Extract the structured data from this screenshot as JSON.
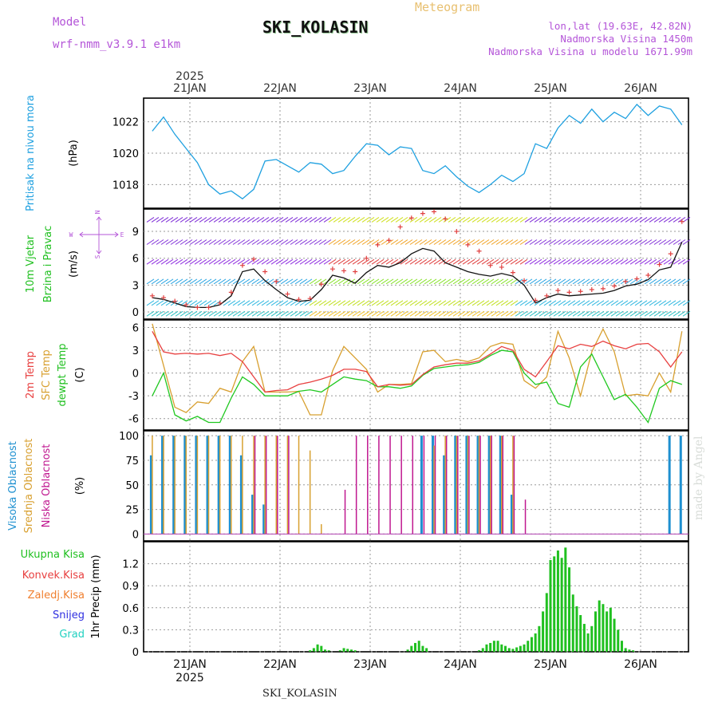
{
  "header": {
    "model_label": "Model",
    "model_name": "wrf-nmm_v3.9.1 e1km",
    "product": "Meteogram",
    "station": "SKI_KOLASIN",
    "lonlat": "lon,lat (19.63E, 42.82N)",
    "altitude": "Nadmorska Visina 1450m",
    "altitude_model": "Nadmorska Visina u modelu 1671.99m"
  },
  "footer": "SKI_KOLASIN",
  "credit": "made by Angel",
  "time_axis": {
    "year": "2025",
    "days": [
      "21JAN",
      "22JAN",
      "23JAN",
      "24JAN",
      "25JAN",
      "26JAN"
    ]
  },
  "colors": {
    "pressure": "#1ea0e0",
    "wind_speed": "#111111",
    "wind_gust": "#e04040",
    "t2m": "#e84040",
    "tsfc": "#d8a030",
    "dewpt": "#20c820",
    "cloud_high": "#1e90d0",
    "cloud_mid": "#d8a030",
    "cloud_low": "#c01890",
    "precip_total": "#20c020",
    "precip_conv": "#e84040",
    "precip_frz": "#f08030",
    "precip_snow": "#3030e0",
    "precip_grad": "#20d0c0"
  },
  "wind_compass": {
    "n": "N",
    "w": "W",
    "e": "E",
    "s": "S"
  },
  "panels": {
    "pressure": {
      "label": "Pritisak na nivou mora",
      "unit": "(hPa)",
      "ticks": [
        "1018",
        "1020",
        "1022"
      ]
    },
    "wind": {
      "label1": "10m Vjetar",
      "label2": "Brzina i Pravac",
      "unit": "(m/s)",
      "ticks": [
        "0",
        "3",
        "6",
        "9"
      ]
    },
    "temp": {
      "label1": "2m Temp",
      "label2": "SFC Temp",
      "label3": "dewpt Temp",
      "unit": "(C)",
      "ticks": [
        "-6",
        "-3",
        "0",
        "3",
        "6"
      ]
    },
    "cloud": {
      "label1": "Visoka Oblacnost",
      "label2": "Srednja Oblacnost",
      "label3": "Niska Oblacnost",
      "unit": "(%)",
      "ticks": [
        "0",
        "25",
        "50",
        "75",
        "100"
      ]
    },
    "precip": {
      "labels": [
        "Ukupna Kisa",
        "Konvek.Kisa",
        "Zaledj.Kisa",
        "Snijeg",
        "Grad"
      ],
      "axis": "1hr Precip (mm)",
      "ticks": [
        "0",
        "0.3",
        "0.6",
        "0.9",
        "1.2"
      ]
    }
  },
  "chart_data": [
    {
      "type": "line",
      "title": "Pritisak na nivou mora",
      "ylabel": "hPa",
      "x_start": "2025-01-20T14:00",
      "x_step_hours": 3,
      "ylim": [
        1016.5,
        1023.5
      ],
      "series": [
        {
          "name": "Pritisak na nivou mora",
          "values": [
            1021.4,
            1022.3,
            1021.2,
            1020.3,
            1019.4,
            1018.0,
            1017.4,
            1017.6,
            1017.1,
            1017.7,
            1019.5,
            1019.6,
            1019.2,
            1018.8,
            1019.4,
            1019.3,
            1018.7,
            1018.9,
            1019.8,
            1020.6,
            1020.5,
            1019.9,
            1020.4,
            1020.3,
            1018.9,
            1018.7,
            1019.2,
            1018.5,
            1017.9,
            1017.5,
            1018.0,
            1018.6,
            1018.2,
            1018.7,
            1020.6,
            1020.3,
            1021.6,
            1022.4,
            1021.9,
            1022.8,
            1022.0,
            1022.6,
            1022.2,
            1023.1,
            1022.4,
            1023.0,
            1022.8,
            1021.8
          ]
        }
      ]
    },
    {
      "type": "line",
      "title": "10m Vjetar Brzina i Pravac",
      "ylabel": "m/s",
      "x_start": "2025-01-20T14:00",
      "x_step_hours": 3,
      "ylim": [
        -0.8,
        11.5
      ],
      "series": [
        {
          "name": "Brzina",
          "values": [
            1.6,
            1.4,
            1.0,
            0.6,
            0.5,
            0.5,
            0.8,
            1.8,
            4.5,
            4.8,
            3.5,
            2.5,
            1.6,
            1.2,
            1.3,
            2.5,
            4.1,
            3.8,
            3.2,
            4.4,
            5.2,
            5.0,
            5.5,
            6.5,
            7.1,
            6.8,
            5.5,
            5.0,
            4.5,
            4.2,
            4.0,
            4.3,
            4.0,
            3.0,
            1.0,
            1.6,
            2.0,
            1.8,
            1.9,
            2.0,
            2.1,
            2.4,
            2.9,
            3.1,
            3.6,
            4.7,
            5.0,
            7.8
          ]
        },
        {
          "name": "Udari",
          "values": [
            1.8,
            1.6,
            1.2,
            0.8,
            0.5,
            0.5,
            1.0,
            2.2,
            5.2,
            5.9,
            4.5,
            3.4,
            2.0,
            1.4,
            1.5,
            3.1,
            4.8,
            4.6,
            4.5,
            6.0,
            7.5,
            8.0,
            9.5,
            10.5,
            11.0,
            11.2,
            10.4,
            9.0,
            7.5,
            6.8,
            5.2,
            5.0,
            4.4,
            3.5,
            1.3,
            1.8,
            2.4,
            2.2,
            2.3,
            2.5,
            2.6,
            2.9,
            3.4,
            3.7,
            4.1,
            5.3,
            6.5,
            10.1
          ]
        }
      ]
    },
    {
      "type": "line",
      "title": "2m Temp / SFC Temp / dewpt Temp",
      "ylabel": "C",
      "x_start": "2025-01-20T14:00",
      "x_step_hours": 3,
      "ylim": [
        -7.5,
        7.0
      ],
      "series": [
        {
          "name": "2m Temp",
          "values": [
            5.5,
            2.8,
            2.5,
            2.6,
            2.5,
            2.6,
            2.3,
            2.6,
            1.5,
            -0.5,
            -2.5,
            -2.3,
            -2.2,
            -1.5,
            -1.2,
            -0.8,
            -0.3,
            0.5,
            0.5,
            0.2,
            -1.8,
            -1.5,
            -1.6,
            -1.5,
            -0.2,
            0.8,
            1.1,
            1.3,
            1.3,
            1.6,
            2.5,
            3.5,
            3.0,
            0.5,
            -0.5,
            1.5,
            3.6,
            3.2,
            3.8,
            3.5,
            4.2,
            3.6,
            3.2,
            3.8,
            3.9,
            2.8,
            0.8,
            2.8
          ]
        },
        {
          "name": "SFC Temp",
          "values": [
            6.5,
            1.0,
            -4.5,
            -5.2,
            -3.8,
            -4.0,
            -2.0,
            -2.5,
            1.5,
            3.5,
            -2.5,
            -2.5,
            -2.5,
            -2.4,
            -5.5,
            -5.5,
            0.3,
            3.5,
            2.0,
            0.5,
            -2.5,
            -1.5,
            -1.5,
            -1.4,
            2.8,
            3.0,
            1.5,
            1.8,
            1.5,
            2.0,
            3.5,
            4.0,
            3.8,
            -1.0,
            -2.0,
            -0.5,
            5.5,
            2.0,
            -3.0,
            2.8,
            5.8,
            2.8,
            -3.0,
            -2.8,
            -3.0,
            0.0,
            -2.5,
            5.5
          ]
        },
        {
          "name": "dewpt Temp",
          "values": [
            -3.0,
            0.0,
            -5.5,
            -6.3,
            -5.7,
            -6.5,
            -6.5,
            -3.3,
            -0.5,
            -1.5,
            -3.0,
            -3.0,
            -3.0,
            -2.4,
            -2.2,
            -2.5,
            -1.5,
            -0.5,
            -0.8,
            -1.0,
            -1.8,
            -1.8,
            -2.0,
            -1.7,
            -0.3,
            0.6,
            0.8,
            1.0,
            1.1,
            1.4,
            2.3,
            3.0,
            2.8,
            0.0,
            -1.5,
            -1.2,
            -4.0,
            -4.5,
            0.8,
            2.5,
            -0.5,
            -3.5,
            -2.8,
            -4.5,
            -6.5,
            -2.0,
            -1.0,
            -1.5
          ]
        }
      ]
    },
    {
      "type": "bar",
      "title": "Oblacnost",
      "ylabel": "%",
      "x_start": "2025-01-20T14:00",
      "x_step_hours": 3,
      "ylim": [
        0,
        100
      ],
      "series": [
        {
          "name": "Visoka Oblacnost",
          "values": [
            80,
            100,
            100,
            100,
            100,
            100,
            100,
            100,
            80,
            40,
            30,
            0,
            0,
            0,
            0,
            0,
            0,
            0,
            0,
            0,
            0,
            0,
            0,
            0,
            100,
            100,
            80,
            100,
            100,
            100,
            100,
            100,
            40,
            0,
            0,
            0,
            0,
            0,
            0,
            0,
            0,
            0,
            0,
            0,
            0,
            0,
            100,
            100
          ]
        },
        {
          "name": "Srednja Oblacnost",
          "values": [
            100,
            100,
            100,
            100,
            100,
            100,
            100,
            100,
            100,
            100,
            100,
            100,
            100,
            100,
            85,
            10,
            0,
            0,
            0,
            0,
            0,
            0,
            0,
            0,
            0,
            90,
            100,
            100,
            100,
            100,
            100,
            100,
            100,
            0,
            0,
            0,
            0,
            0,
            0,
            0,
            0,
            0,
            0,
            0,
            0,
            0,
            0,
            0
          ]
        },
        {
          "name": "Niska Oblacnost",
          "values": [
            0,
            0,
            0,
            0,
            0,
            0,
            0,
            0,
            0,
            100,
            100,
            100,
            100,
            0,
            0,
            0,
            0,
            45,
            100,
            100,
            100,
            100,
            100,
            100,
            100,
            100,
            100,
            100,
            100,
            100,
            100,
            100,
            100,
            35,
            0,
            0,
            0,
            0,
            0,
            0,
            0,
            0,
            0,
            0,
            0,
            0,
            0,
            0
          ]
        }
      ]
    },
    {
      "type": "bar",
      "title": "1hr Precip",
      "ylabel": "1hr Precip (mm)",
      "x_start": "2025-01-20T14:00",
      "x_step_hours": 1,
      "ylim": [
        0,
        1.5
      ],
      "series": [
        {
          "name": "Ukupna Kisa",
          "values": [
            0,
            0,
            0,
            0,
            0,
            0,
            0,
            0,
            0,
            0,
            0,
            0,
            0,
            0,
            0,
            0,
            0,
            0,
            0,
            0,
            0,
            0,
            0,
            0,
            0,
            0,
            0,
            0,
            0,
            0,
            0,
            0,
            0,
            0,
            0,
            0,
            0,
            0,
            0,
            0,
            0,
            0,
            0.02,
            0.05,
            0.1,
            0.08,
            0.03,
            0.02,
            0,
            0,
            0.02,
            0.05,
            0.04,
            0.03,
            0.02,
            0,
            0,
            0,
            0,
            0,
            0,
            0,
            0,
            0,
            0,
            0,
            0,
            0,
            0.03,
            0.08,
            0.12,
            0.15,
            0.08,
            0.05,
            0,
            0,
            0,
            0,
            0,
            0,
            0,
            0,
            0,
            0,
            0,
            0,
            0,
            0.02,
            0.05,
            0.1,
            0.12,
            0.15,
            0.15,
            0.1,
            0.08,
            0.05,
            0.04,
            0.06,
            0.08,
            0.1,
            0.15,
            0.2,
            0.25,
            0.35,
            0.55,
            0.8,
            1.25,
            1.3,
            1.38,
            1.28,
            1.42,
            1.15,
            0.78,
            0.62,
            0.5,
            0.38,
            0.25,
            0.35,
            0.55,
            0.7,
            0.65,
            0.55,
            0.6,
            0.45,
            0.3,
            0.15,
            0.05,
            0.03,
            0.02
          ]
        },
        {
          "name": "Konvek.Kisa",
          "values": []
        },
        {
          "name": "Zaledj.Kisa",
          "values": []
        },
        {
          "name": "Snijeg",
          "values": []
        },
        {
          "name": "Grad",
          "values": []
        }
      ]
    }
  ]
}
